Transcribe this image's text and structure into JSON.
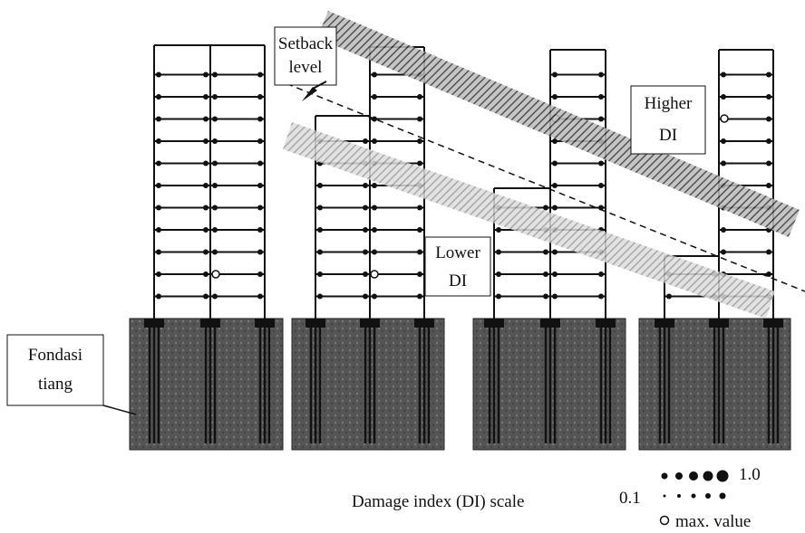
{
  "labels": {
    "setback": [
      "Setback",
      "level"
    ],
    "higher": [
      "Higher",
      "DI"
    ],
    "lower": [
      "Lower",
      "DI"
    ],
    "foundation": [
      "Fondasi",
      "tiang"
    ]
  },
  "legend": {
    "title": "Damage   index (DI) scale",
    "min": "0.1",
    "max": "1.0",
    "max_value": "max. value"
  }
}
